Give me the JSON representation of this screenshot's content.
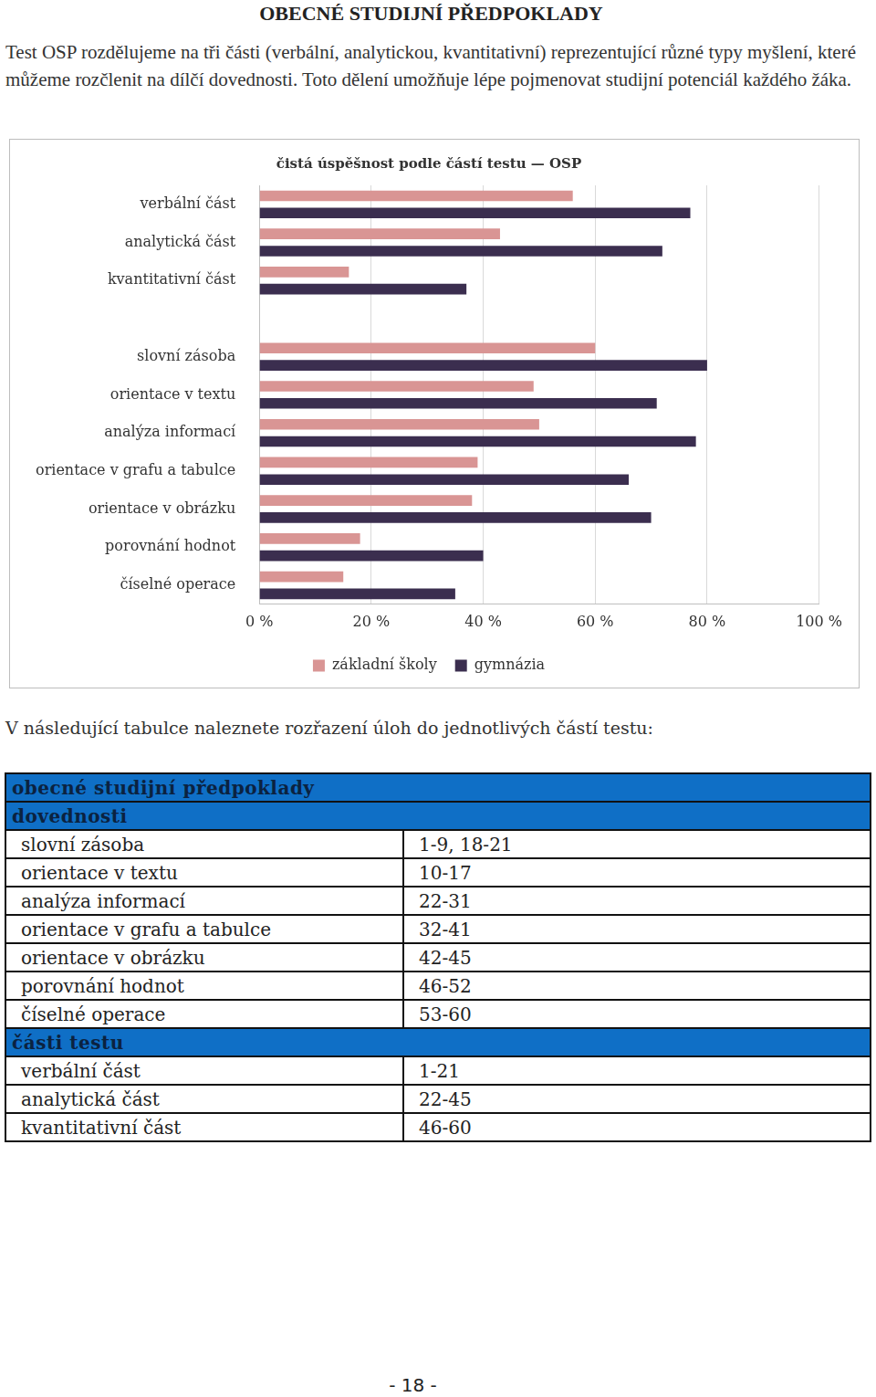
{
  "heading": "OBECNÉ STUDIJNÍ PŘEDPOKLADY",
  "intro": "Test OSP rozdělujeme na tři části (verbální, analytickou, kvantitativní) reprezentující různé typy myšlení, které můžeme rozčlenit na dílčí dovednosti. Toto dělení umožňuje lépe pojmenovat studijní potenciál každého žáka.",
  "chart_data": {
    "type": "bar",
    "orientation": "horizontal",
    "title": "čistá úspěšnost podle částí testu — OSP",
    "categories": [
      "verbální část",
      "analytická část",
      "kvantitativní část",
      null,
      "slovní zásoba",
      "orientace v textu",
      "analýza informací",
      "orientace v grafu a tabulce",
      "orientace v obrázku",
      "porovnání hodnot",
      "číselné operace"
    ],
    "series": [
      {
        "name": "základní školy",
        "color": "#d99594",
        "values": [
          56,
          43,
          16,
          null,
          60,
          49,
          50,
          39,
          38,
          18,
          15
        ]
      },
      {
        "name": "gymnázia",
        "color": "#3b2e4f",
        "values": [
          77,
          72,
          37,
          null,
          80,
          71,
          78,
          66,
          70,
          40,
          35
        ]
      }
    ],
    "xlim": [
      0,
      100
    ],
    "xticks": [
      {
        "value": 0,
        "label": "0 %"
      },
      {
        "value": 20,
        "label": "20 %"
      },
      {
        "value": 40,
        "label": "40 %"
      },
      {
        "value": 60,
        "label": "60 %"
      },
      {
        "value": 80,
        "label": "80 %"
      },
      {
        "value": 100,
        "label": "100 %"
      }
    ],
    "grid": true,
    "legend": "bottom"
  },
  "sentence": "V následující tabulce naleznete rozřazení úloh do jednotlivých částí testu:",
  "table": {
    "title": "obecné studijní předpoklady",
    "sections": [
      {
        "title": "dovednosti",
        "rows": [
          [
            "slovní zásoba",
            "1-9, 18-21"
          ],
          [
            "orientace v textu",
            "10-17"
          ],
          [
            "analýza informací",
            "22-31"
          ],
          [
            "orientace v grafu a tabulce",
            "32-41"
          ],
          [
            "orientace v obrázku",
            "42-45"
          ],
          [
            "porovnání hodnot",
            "46-52"
          ],
          [
            "číselné operace",
            "53-60"
          ]
        ]
      },
      {
        "title": "části testu",
        "rows": [
          [
            "verbální část",
            "1-21"
          ],
          [
            "analytická část",
            "22-45"
          ],
          [
            "kvantitativní část",
            "46-60"
          ]
        ]
      }
    ]
  },
  "page_number": "- 18 -"
}
